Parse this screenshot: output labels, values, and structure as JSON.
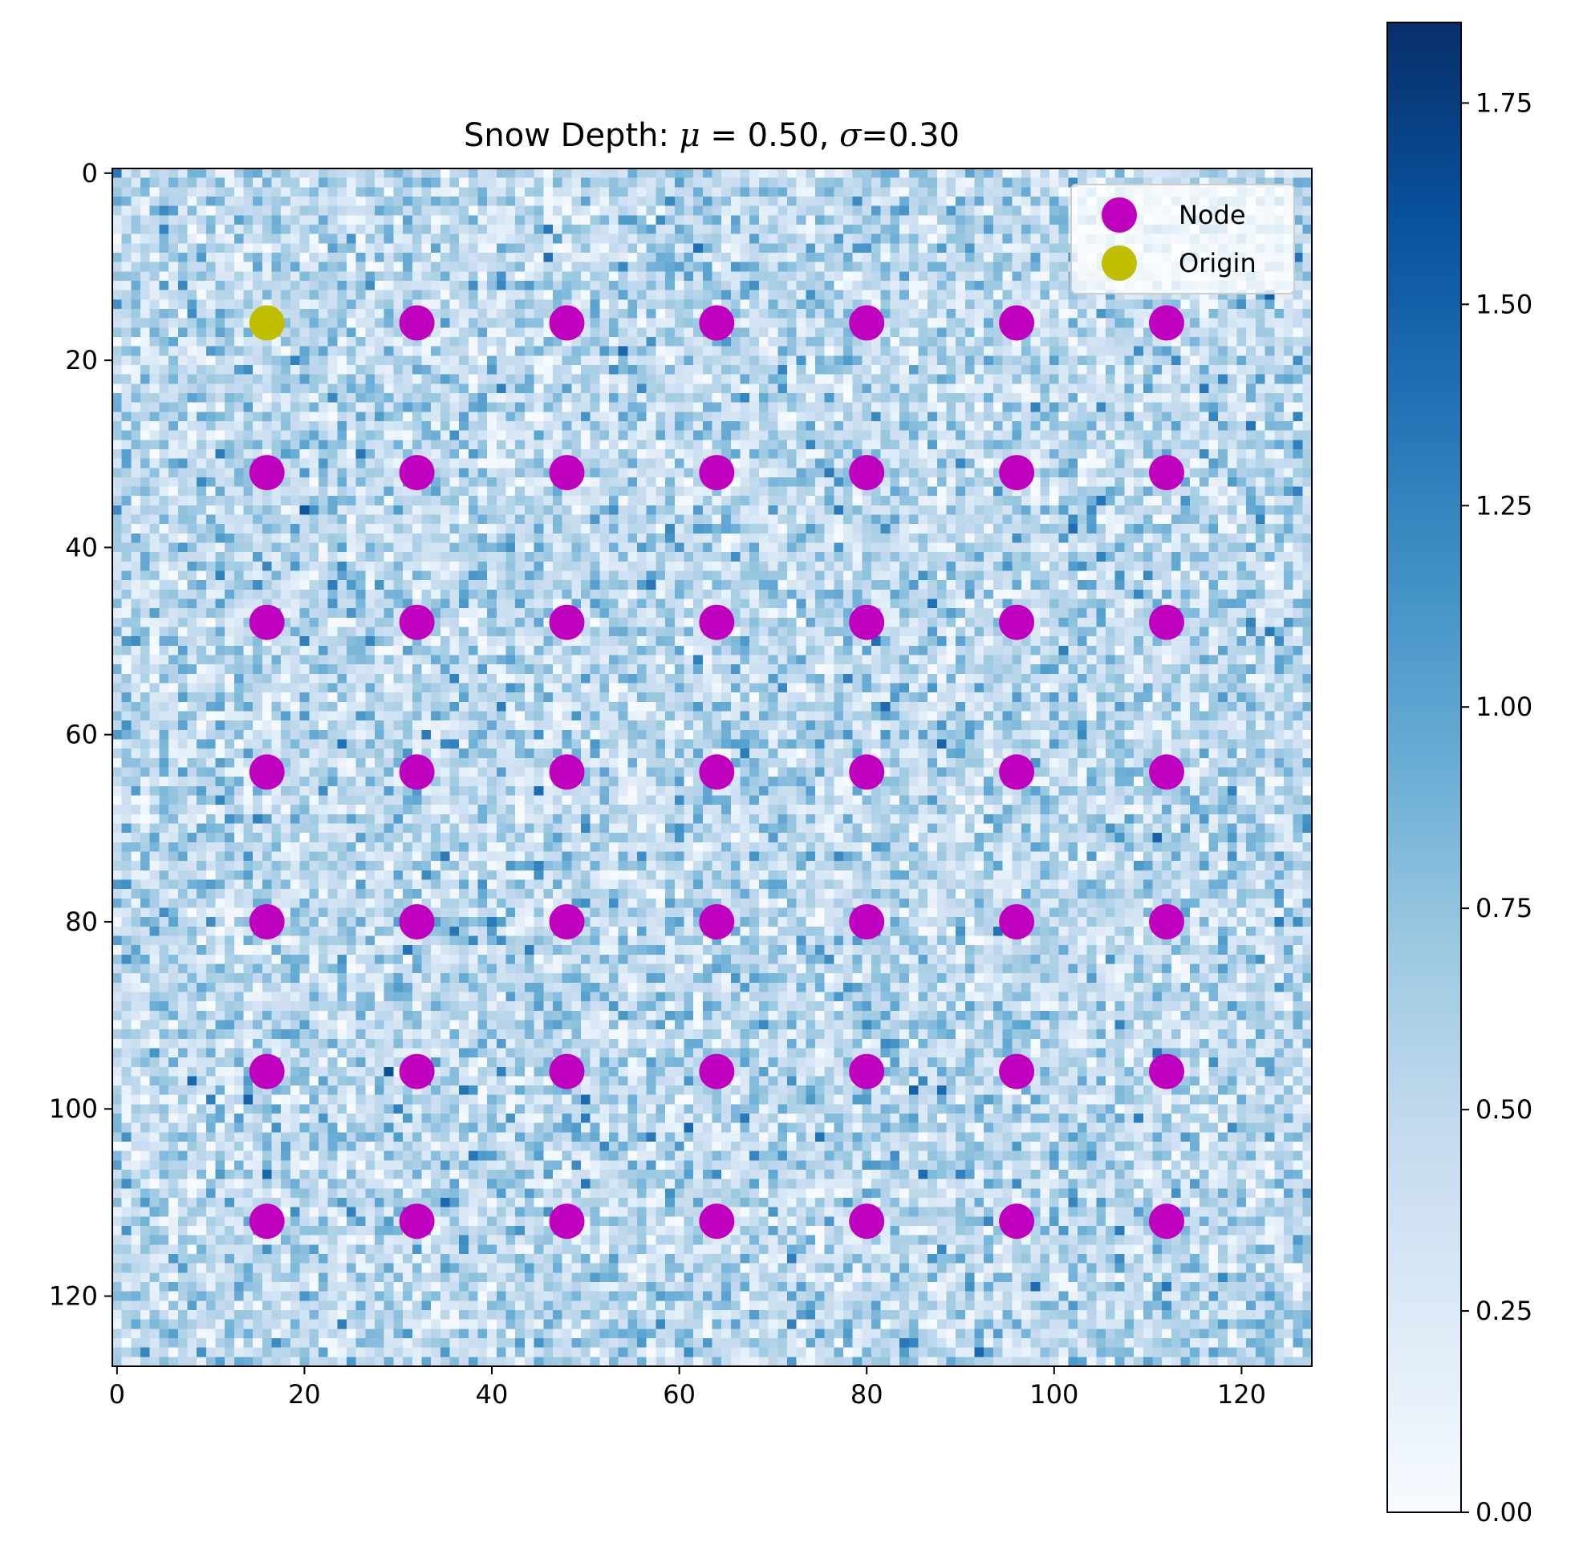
{
  "chart_data": {
    "type": "heatmap",
    "title": "Snow Depth: μ = 0.50, σ=0.30",
    "title_parts": {
      "prefix": "Snow Depth: ",
      "mu_symbol": "μ",
      "mu_value": " = 0.50, ",
      "sigma_symbol": "σ",
      "sigma_value": "=0.30"
    },
    "xlabel": "",
    "ylabel": "",
    "grid": false,
    "heatmap": {
      "rows": 128,
      "cols": 128,
      "mean": 0.5,
      "std": 0.3,
      "vmin": 0.0,
      "vmax": 1.85,
      "colormap": "Blues"
    },
    "x_axis": {
      "range": [
        -0.5,
        127.5
      ],
      "ticks": [
        0,
        20,
        40,
        60,
        80,
        100,
        120
      ],
      "tick_labels": [
        "0",
        "20",
        "40",
        "60",
        "80",
        "100",
        "120"
      ]
    },
    "y_axis": {
      "range": [
        127.5,
        -0.5
      ],
      "inverted": true,
      "ticks": [
        0,
        20,
        40,
        60,
        80,
        100,
        120
      ],
      "tick_labels": [
        "0",
        "20",
        "40",
        "60",
        "80",
        "100",
        "120"
      ]
    },
    "colorbar": {
      "range": [
        0.0,
        1.85
      ],
      "ticks": [
        0.0,
        0.25,
        0.5,
        0.75,
        1.0,
        1.25,
        1.5,
        1.75
      ],
      "tick_labels": [
        "0.00",
        "0.25",
        "0.50",
        "0.75",
        "1.00",
        "1.25",
        "1.50",
        "1.75"
      ]
    },
    "series": [
      {
        "name": "Node",
        "type": "scatter",
        "color": "#bf00bf",
        "points": [
          [
            32,
            16
          ],
          [
            48,
            16
          ],
          [
            64,
            16
          ],
          [
            80,
            16
          ],
          [
            96,
            16
          ],
          [
            112,
            16
          ],
          [
            16,
            32
          ],
          [
            32,
            32
          ],
          [
            48,
            32
          ],
          [
            64,
            32
          ],
          [
            80,
            32
          ],
          [
            96,
            32
          ],
          [
            112,
            32
          ],
          [
            16,
            48
          ],
          [
            32,
            48
          ],
          [
            48,
            48
          ],
          [
            64,
            48
          ],
          [
            80,
            48
          ],
          [
            96,
            48
          ],
          [
            112,
            48
          ],
          [
            16,
            64
          ],
          [
            32,
            64
          ],
          [
            48,
            64
          ],
          [
            64,
            64
          ],
          [
            80,
            64
          ],
          [
            96,
            64
          ],
          [
            112,
            64
          ],
          [
            16,
            80
          ],
          [
            32,
            80
          ],
          [
            48,
            80
          ],
          [
            64,
            80
          ],
          [
            80,
            80
          ],
          [
            96,
            80
          ],
          [
            112,
            80
          ],
          [
            16,
            96
          ],
          [
            32,
            96
          ],
          [
            48,
            96
          ],
          [
            64,
            96
          ],
          [
            80,
            96
          ],
          [
            96,
            96
          ],
          [
            112,
            96
          ],
          [
            16,
            112
          ],
          [
            32,
            112
          ],
          [
            48,
            112
          ],
          [
            64,
            112
          ],
          [
            80,
            112
          ],
          [
            96,
            112
          ],
          [
            112,
            112
          ]
        ]
      },
      {
        "name": "Origin",
        "type": "scatter",
        "color": "#bfbf00",
        "points": [
          [
            16,
            16
          ]
        ]
      }
    ],
    "legend": {
      "placement": "top-right",
      "entries": [
        {
          "label": "Node",
          "color": "#bf00bf"
        },
        {
          "label": "Origin",
          "color": "#bfbf00"
        }
      ]
    }
  }
}
